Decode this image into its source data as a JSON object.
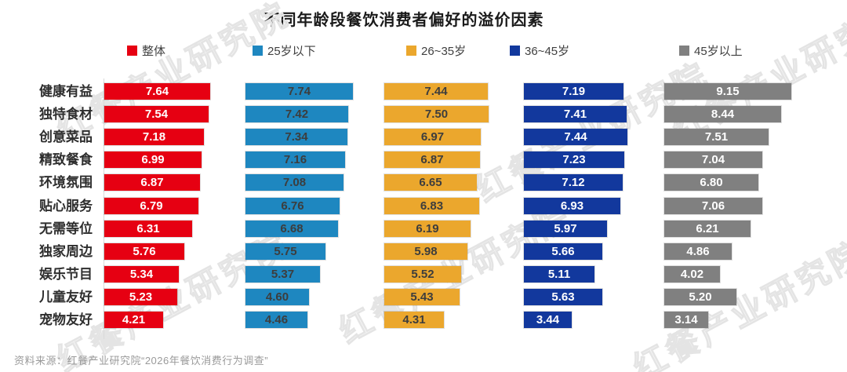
{
  "title": "不同年龄段餐饮消费者偏好的溢价因素",
  "source": "资料来源：红餐产业研究院“2026年餐饮消费行为调查”",
  "watermark_text": "红餐产业研究院",
  "colors": {
    "overall_red": "#E60012",
    "under25_blue": "#1E87C0",
    "age26_35_orange": "#EBA72D",
    "age36_45_darkblue": "#12389D",
    "over45_gray": "#808080",
    "dark_value_text": "#3D3D3D",
    "light_value_text": "#FFFFFF"
  },
  "chart_data": {
    "type": "bar",
    "orientation": "horizontal",
    "title": "不同年龄段餐饮消费者偏好的溢价因素",
    "xlim": [
      0,
      10
    ],
    "grid": false,
    "legend_position": "top",
    "categories": [
      "健康有益",
      "独特食材",
      "创意菜品",
      "精致餐食",
      "环境氛围",
      "贴心服务",
      "无需等位",
      "独家周边",
      "娱乐节目",
      "儿童友好",
      "宠物友好"
    ],
    "series": [
      {
        "name": "整体",
        "color": "#E60012",
        "value_color": "#FFFFFF",
        "values": [
          7.64,
          7.54,
          7.18,
          6.99,
          6.87,
          6.79,
          6.31,
          5.76,
          5.34,
          5.23,
          4.21
        ]
      },
      {
        "name": "25岁以下",
        "color": "#1E87C0",
        "value_color": "#3D3D3D",
        "values": [
          7.74,
          7.42,
          7.34,
          7.16,
          7.08,
          6.76,
          6.68,
          5.75,
          5.37,
          4.6,
          4.46
        ]
      },
      {
        "name": "26~35岁",
        "color": "#EBA72D",
        "value_color": "#3D3D3D",
        "values": [
          7.44,
          7.5,
          6.97,
          6.87,
          6.65,
          6.83,
          6.19,
          5.98,
          5.52,
          5.43,
          4.31
        ]
      },
      {
        "name": "36~45岁",
        "color": "#12389D",
        "value_color": "#FFFFFF",
        "values": [
          7.19,
          7.41,
          7.44,
          7.23,
          7.12,
          6.93,
          5.97,
          5.66,
          5.11,
          5.63,
          3.44
        ]
      },
      {
        "name": "45岁以上",
        "color": "#808080",
        "value_color": "#FFFFFF",
        "values": [
          9.15,
          8.44,
          7.51,
          7.04,
          6.8,
          7.06,
          6.21,
          4.86,
          4.02,
          5.2,
          3.14
        ]
      }
    ]
  }
}
